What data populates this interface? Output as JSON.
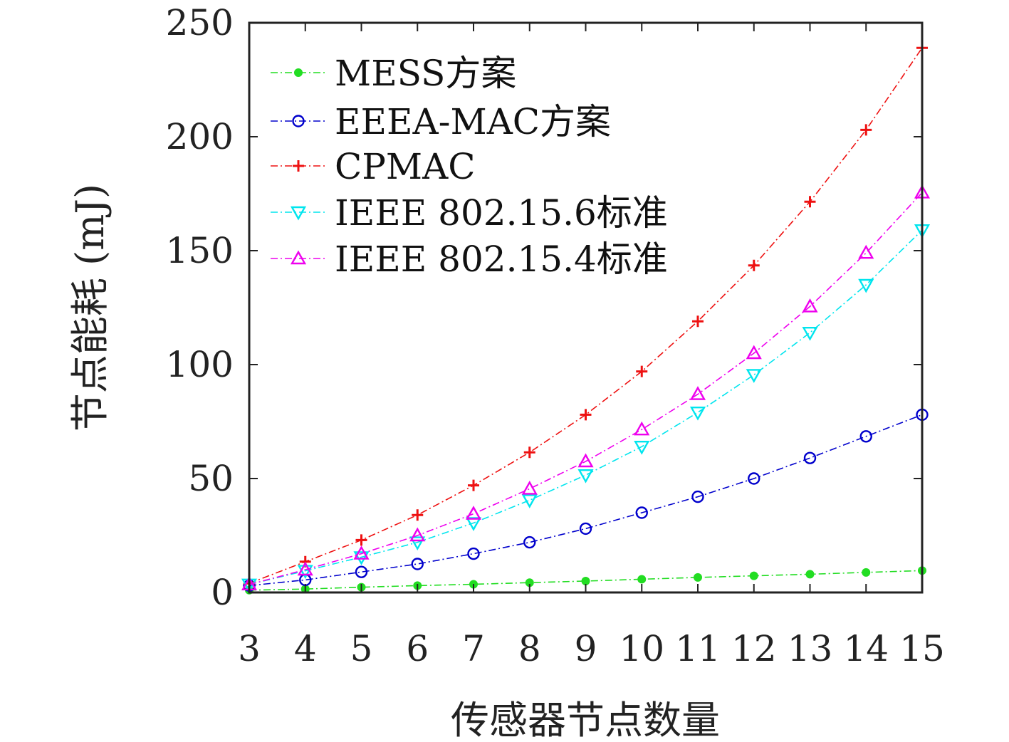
{
  "chart_data": {
    "type": "line",
    "xlabel": "传感器节点数量",
    "ylabel": "节点能耗 (mJ)",
    "x": [
      3,
      4,
      5,
      6,
      7,
      8,
      9,
      10,
      11,
      12,
      13,
      14,
      15
    ],
    "xlim": [
      3,
      15
    ],
    "ylim": [
      0,
      250
    ],
    "xticks": [
      "3",
      "4",
      "5",
      "6",
      "7",
      "8",
      "9",
      "10",
      "11",
      "12",
      "13",
      "14",
      "15"
    ],
    "yticks": [
      "0",
      "50",
      "100",
      "150",
      "200",
      "250"
    ],
    "grid": false,
    "legend_position": "top-left",
    "series": [
      {
        "name": "MESS方案",
        "color": "#22dd22",
        "marker": "dot",
        "values": [
          1,
          1.5,
          2.3,
          3,
          3.6,
          4.3,
          5,
          5.8,
          6.6,
          7.3,
          8,
          8.8,
          9.6
        ]
      },
      {
        "name": "EEEA-MAC方案",
        "color": "#0000cc",
        "marker": "circle",
        "values": [
          3,
          5.5,
          9,
          12.5,
          17,
          22,
          28,
          35,
          42,
          50,
          59,
          68.5,
          78
        ]
      },
      {
        "name": "CPMAC",
        "color": "#ee1111",
        "marker": "plus",
        "values": [
          4,
          13.5,
          23,
          34,
          47,
          61.5,
          78,
          97,
          119,
          143.5,
          171.5,
          203,
          239
        ]
      },
      {
        "name": "IEEE 802.15.6标准",
        "color": "#00e5ee",
        "marker": "triangle-down",
        "values": [
          3.5,
          9.5,
          15.5,
          22,
          30.5,
          40.5,
          51.5,
          64,
          79,
          95.5,
          114,
          135,
          159
        ]
      },
      {
        "name": "IEEE 802.15.4标准",
        "color": "#ee00ee",
        "marker": "triangle-up",
        "values": [
          3.5,
          10,
          17,
          25,
          34.5,
          45.5,
          57.5,
          71.5,
          87,
          105,
          125.5,
          149,
          175.5
        ]
      }
    ]
  }
}
